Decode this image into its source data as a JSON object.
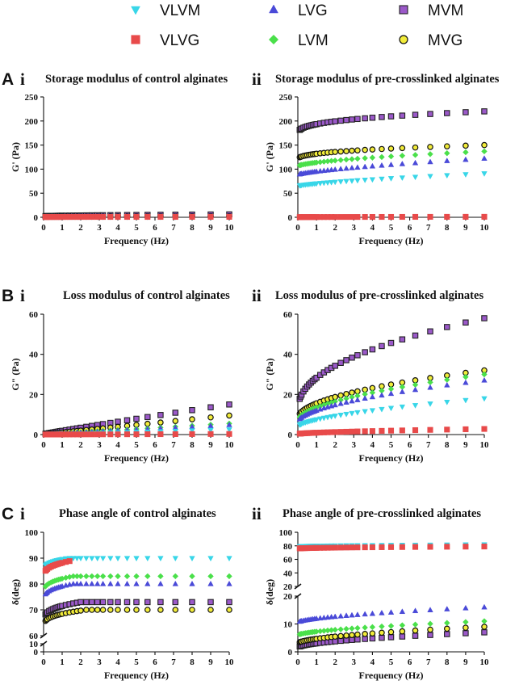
{
  "figure": {
    "legend": [
      {
        "label": "VLVM",
        "marker": "triangle-down",
        "fill": "#38d6e8",
        "stroke": "#38d6e8"
      },
      {
        "label": "LVG",
        "marker": "triangle-up",
        "fill": "#4a4ad8",
        "stroke": "#4a4ad8"
      },
      {
        "label": "MVM",
        "marker": "square",
        "fill": "#9b59c9",
        "stroke": "#222222"
      },
      {
        "label": "VLVG",
        "marker": "square",
        "fill": "#e84a4a",
        "stroke": "#e84a4a"
      },
      {
        "label": "LVM",
        "marker": "diamond",
        "fill": "#4ae04a",
        "stroke": "#4ae04a"
      },
      {
        "label": "MVG",
        "marker": "circle",
        "fill": "#f2ec3a",
        "stroke": "#111111"
      }
    ],
    "section_letters": [
      "A",
      "B",
      "C"
    ],
    "panel_numerals": [
      "i",
      "ii"
    ]
  },
  "chart_data": [
    {
      "id": "Ai",
      "type": "scatter",
      "title": "Storage modulus of control alginates",
      "xlabel": "Frequency (Hz)",
      "ylabel": "G' (Pa)",
      "xlim": [
        0,
        10
      ],
      "ylim": [
        0,
        250
      ],
      "x_ticks": [
        "0",
        "1",
        "2",
        "3",
        "4",
        "5",
        "6",
        "7",
        "8",
        "9",
        "10"
      ],
      "y_ticks": [
        "0",
        "50",
        "100",
        "150",
        "200",
        "250"
      ],
      "series": [
        {
          "name": "VLVM",
          "start": 0.5,
          "end": 0.6,
          "power": 0.5
        },
        {
          "name": "LVG",
          "start": 0.8,
          "end": 1.5,
          "power": 0.5
        },
        {
          "name": "LVM",
          "start": 0.8,
          "end": 1.8,
          "power": 0.5
        },
        {
          "name": "MVG",
          "start": 1.5,
          "end": 2.2,
          "power": 0.5
        },
        {
          "name": "MVM",
          "start": 2.0,
          "end": 6.0,
          "power": 0.5
        },
        {
          "name": "VLVG",
          "start": 0.6,
          "end": 0.9,
          "power": 0.5
        }
      ]
    },
    {
      "id": "Aii",
      "type": "scatter",
      "title": "Storage modulus of pre-crosslinked alginates",
      "xlabel": "Frequency (Hz)",
      "ylabel": "G' (Pa)",
      "xlim": [
        0,
        10
      ],
      "ylim": [
        0,
        250
      ],
      "x_ticks": [
        "0",
        "1",
        "2",
        "3",
        "4",
        "5",
        "6",
        "7",
        "8",
        "9",
        "10"
      ],
      "y_ticks": [
        "0",
        "50",
        "100",
        "150",
        "200",
        "250"
      ],
      "series": [
        {
          "name": "VLVM",
          "start": 65,
          "end": 91,
          "power": 0.7
        },
        {
          "name": "LVG",
          "start": 88,
          "end": 122,
          "power": 0.7
        },
        {
          "name": "LVM",
          "start": 106,
          "end": 137,
          "power": 0.6
        },
        {
          "name": "MVG",
          "start": 120,
          "end": 150,
          "power": 0.4
        },
        {
          "name": "MVM",
          "start": 172,
          "end": 220,
          "power": 0.35
        },
        {
          "name": "VLVG",
          "start": 0.3,
          "end": 1.0,
          "power": 0.5
        }
      ]
    },
    {
      "id": "Bi",
      "type": "scatter",
      "title": "Loss modulus of control alginates",
      "xlabel": "Frequency (Hz)",
      "ylabel": "G\" (Pa)",
      "xlim": [
        0,
        10
      ],
      "ylim": [
        0,
        60
      ],
      "x_ticks": [
        "0",
        "1",
        "2",
        "3",
        "4",
        "5",
        "6",
        "7",
        "8",
        "9",
        "10"
      ],
      "y_ticks": [
        "0",
        "20",
        "40",
        "60"
      ],
      "series": [
        {
          "name": "VLVM",
          "start": 0.02,
          "end": 2.5,
          "power": 1.0
        },
        {
          "name": "LVG",
          "start": 0.02,
          "end": 4.8,
          "power": 1.0
        },
        {
          "name": "LVM",
          "start": 0.05,
          "end": 5.5,
          "power": 1.0
        },
        {
          "name": "MVG",
          "start": 0.1,
          "end": 9.5,
          "power": 1.0
        },
        {
          "name": "MVM",
          "start": 0.2,
          "end": 15,
          "power": 0.95
        },
        {
          "name": "VLVG",
          "start": 0.02,
          "end": 0.3,
          "power": 1.0
        }
      ]
    },
    {
      "id": "Bii",
      "type": "scatter",
      "title": "Loss modulus of pre-crosslinked alginates",
      "xlabel": "Frequency (Hz)",
      "ylabel": "G\" (Pa)",
      "xlim": [
        0,
        10
      ],
      "ylim": [
        0,
        60
      ],
      "x_ticks": [
        "0",
        "1",
        "2",
        "3",
        "4",
        "5",
        "6",
        "7",
        "8",
        "9",
        "10"
      ],
      "y_ticks": [
        "0",
        "20",
        "40",
        "60"
      ],
      "series": [
        {
          "name": "VLVM",
          "start": 4,
          "end": 18,
          "power": 0.6
        },
        {
          "name": "LVG",
          "start": 6,
          "end": 27,
          "power": 0.55
        },
        {
          "name": "LVM",
          "start": 7,
          "end": 30,
          "power": 0.55
        },
        {
          "name": "MVG",
          "start": 8,
          "end": 32,
          "power": 0.5
        },
        {
          "name": "MVM",
          "start": 12,
          "end": 58,
          "power": 0.45
        },
        {
          "name": "VLVG",
          "start": 0.3,
          "end": 2.8,
          "power": 0.6
        }
      ]
    },
    {
      "id": "Ci",
      "type": "scatter",
      "title": "Phase angle of control alginates",
      "xlabel": "Frequency (Hz)",
      "ylabel": "δ(deg)",
      "xlim": [
        0,
        10
      ],
      "ylim": [
        0,
        100
      ],
      "y_break": [
        10,
        60
      ],
      "x_ticks": [
        "0",
        "1",
        "2",
        "3",
        "4",
        "5",
        "6",
        "7",
        "8",
        "9",
        "10"
      ],
      "y_ticks_upper": [
        "60",
        "70",
        "80",
        "90",
        "100"
      ],
      "y_ticks_lower": [
        "0",
        "10"
      ],
      "series": [
        {
          "name": "VLVM",
          "start": 85,
          "end": 90,
          "power": 0.3,
          "plateau": 1.3
        },
        {
          "name": "LVG",
          "start": 73,
          "end": 80,
          "power": 0.3,
          "plateau": 1.6
        },
        {
          "name": "LVM",
          "start": 76,
          "end": 83,
          "power": 0.3,
          "plateau": 1.6
        },
        {
          "name": "MVG",
          "start": 63,
          "end": 70,
          "power": 0.3,
          "plateau": 2.3
        },
        {
          "name": "MVM",
          "start": 65,
          "end": 73,
          "power": 0.3,
          "plateau": 2.0
        },
        {
          "name": "VLVG",
          "start": 82,
          "end": 89,
          "power": 0.3,
          "plateau": 1.5,
          "x_max": 1.5
        }
      ]
    },
    {
      "id": "Cii",
      "type": "scatter",
      "title": "Phase angle of pre-crosslinked alginates",
      "xlabel": "Frequency (Hz)",
      "ylabel": "δ(deg)",
      "xlim": [
        0,
        10
      ],
      "ylim": [
        0,
        100
      ],
      "y_break": [
        20,
        20
      ],
      "x_ticks": [
        "0",
        "1",
        "2",
        "3",
        "4",
        "5",
        "6",
        "7",
        "8",
        "9",
        "10"
      ],
      "y_ticks_upper": [
        "20",
        "40",
        "60",
        "80",
        "100"
      ],
      "y_ticks_lower": [
        "0",
        "10",
        "20"
      ],
      "series": [
        {
          "name": "VLVM",
          "start": 79,
          "end": 82,
          "power": 0.5
        },
        {
          "name": "LVG",
          "start": 10.5,
          "end": 16,
          "power": 0.6
        },
        {
          "name": "LVM",
          "start": 6,
          "end": 11,
          "power": 0.6
        },
        {
          "name": "MVG",
          "start": 3,
          "end": 9,
          "power": 0.55
        },
        {
          "name": "MVM",
          "start": 1.5,
          "end": 7,
          "power": 0.55
        },
        {
          "name": "VLVG",
          "start": 76,
          "end": 79,
          "power": 0.5
        }
      ]
    }
  ]
}
